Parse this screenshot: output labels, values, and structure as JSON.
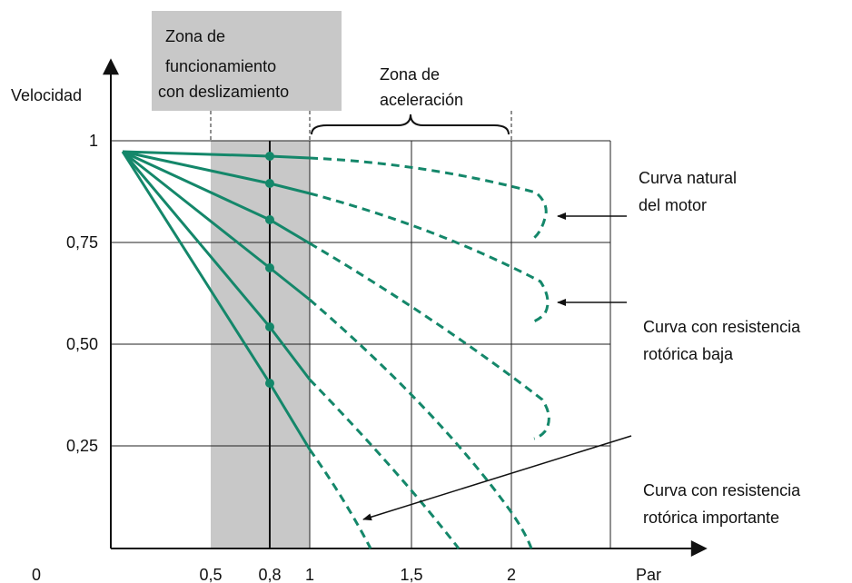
{
  "axes": {
    "y_label": "Velocidad",
    "x_label": "Par",
    "y_ticks": [
      "1",
      "0,75",
      "0,50",
      "0,25"
    ],
    "x_ticks": [
      "0",
      "0,5",
      "0,8",
      "1",
      "1,5",
      "2"
    ]
  },
  "zones": {
    "slip": [
      "Zona de",
      "funcionamiento",
      "con deslizamiento"
    ],
    "acceleration": [
      "Zona de",
      "aceleración"
    ]
  },
  "annotations": {
    "natural": [
      "Curva natural",
      "del motor"
    ],
    "low_resistance": [
      "Curva con resistencia",
      "rotórica baja"
    ],
    "high_resistance": [
      "Curva con resistencia",
      "rotórica importante"
    ]
  }
}
